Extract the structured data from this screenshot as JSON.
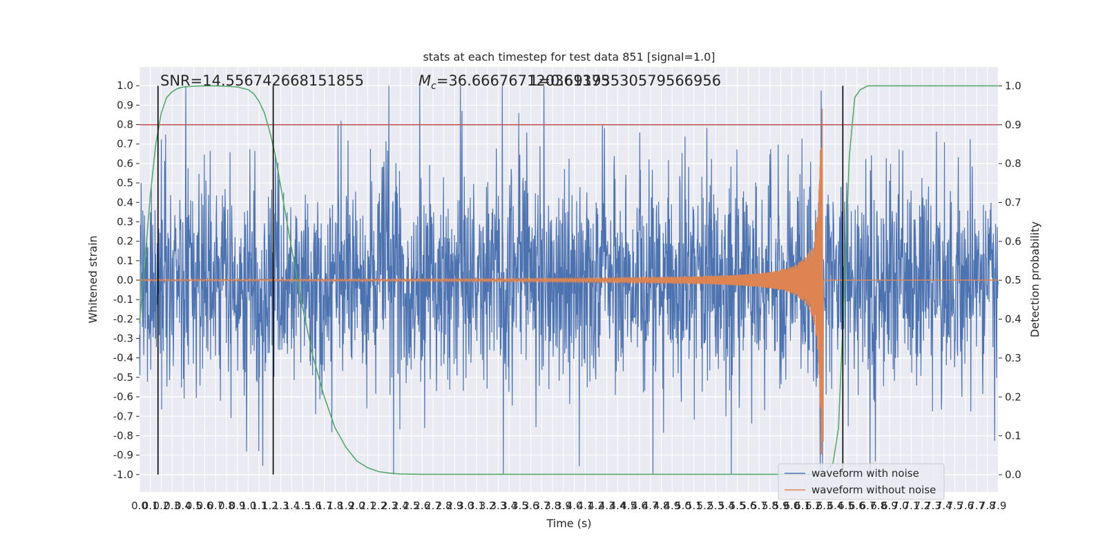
{
  "chart_data": {
    "type": "line",
    "title": "stats at each timestep for test data 851 [signal=1.0]",
    "xlabel": "Time (s)",
    "ylabel": "Whitened strain",
    "y2label": "Detection probability",
    "xlim": [
      0.0,
      7.9
    ],
    "ylim": [
      -1.1,
      1.1
    ],
    "y2lim": [
      -0.05,
      1.05
    ],
    "grid": true,
    "legend_position": "lower-right",
    "x_tick_step": 0.1,
    "y_ticks": [
      "1.0",
      "0.9",
      "0.8",
      "0.7",
      "0.6",
      "0.5",
      "0.4",
      "0.3",
      "0.2",
      "0.1",
      "0.0",
      "-0.1",
      "-0.2",
      "-0.3",
      "-0.4",
      "-0.5",
      "-0.6",
      "-0.7",
      "-0.8",
      "-0.9",
      "-1.0"
    ],
    "y2_ticks": [
      "1.0",
      "0.9",
      "0.8",
      "0.7",
      "0.6",
      "0.5",
      "0.4",
      "0.3",
      "0.2",
      "0.1",
      "0.0"
    ],
    "annotations": {
      "snr": "SNR=14.556742668151855",
      "mc_prefix": "M",
      "mc_sub": "c",
      "mc_value": "=36.666767120361375",
      "overlap": "1=0.69193530579566956"
    },
    "threshold": {
      "value": 0.9,
      "axis": "right",
      "color": "#c44e52"
    },
    "vertical_markers": [
      0.17,
      1.23,
      6.47
    ],
    "series": [
      {
        "name": "waveform with noise",
        "color": "#4c72b0",
        "axis": "left",
        "kind": "noise",
        "amplitude": 0.45,
        "peak_max": 1.0
      },
      {
        "name": "waveform without noise",
        "color": "#dd8452",
        "axis": "left",
        "kind": "chirp",
        "t_merge": 6.27,
        "peak": 0.9
      },
      {
        "name": "",
        "color": "#55a868",
        "axis": "right",
        "kind": "probability",
        "x": [
          0.0,
          0.05,
          0.1,
          0.15,
          0.2,
          0.25,
          0.3,
          0.35,
          0.4,
          0.5,
          0.6,
          0.7,
          0.8,
          0.9,
          1.0,
          1.05,
          1.1,
          1.15,
          1.2,
          1.25,
          1.3,
          1.35,
          1.4,
          1.5,
          1.6,
          1.7,
          1.8,
          1.9,
          2.0,
          2.1,
          2.2,
          2.3,
          2.4,
          2.6,
          6.3,
          6.38,
          6.43,
          6.48,
          6.53,
          6.58,
          6.63,
          6.7,
          7.9
        ],
        "y": [
          0.39,
          0.55,
          0.72,
          0.85,
          0.93,
          0.97,
          0.985,
          0.993,
          0.997,
          0.999,
          1.0,
          1.0,
          0.999,
          0.997,
          0.99,
          0.98,
          0.96,
          0.93,
          0.88,
          0.82,
          0.74,
          0.66,
          0.58,
          0.43,
          0.3,
          0.2,
          0.12,
          0.07,
          0.035,
          0.018,
          0.008,
          0.004,
          0.002,
          0.001,
          0.001,
          0.03,
          0.12,
          0.45,
          0.82,
          0.97,
          0.99,
          1.0,
          1.0
        ]
      }
    ]
  }
}
